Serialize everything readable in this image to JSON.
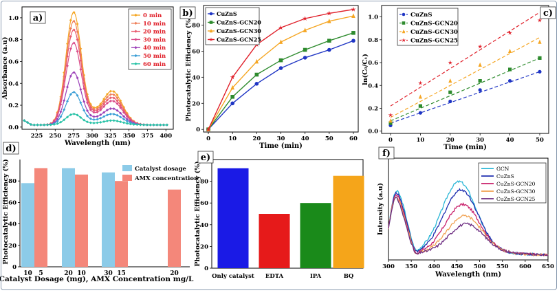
{
  "chart_data": [
    {
      "panel": "a)",
      "type": "line",
      "xlabel": "Wavelength (nm)",
      "ylabel": "Absorbance (a.u)",
      "xlim": [
        205,
        410
      ],
      "ylim": [
        -0.02,
        1.1
      ],
      "xticks": [
        225,
        250,
        275,
        300,
        325,
        350,
        375,
        400
      ],
      "yticks": [
        0.0,
        0.2,
        0.4,
        0.6,
        0.8,
        1.0
      ],
      "yticklabels": [
        "0.0",
        "0.2",
        "0.4",
        "0.6",
        "0.8",
        "1.0"
      ],
      "peak1": 275,
      "peak2": 327,
      "series": [
        {
          "name": "0 min",
          "color": "#f5a623",
          "peak1": 1.03,
          "peak2": 0.31
        },
        {
          "name": "10 min",
          "color": "#ef7d57",
          "peak1": 0.95,
          "peak2": 0.28
        },
        {
          "name": "20 min",
          "color": "#e85a6e",
          "peak1": 0.87,
          "peak2": 0.25
        },
        {
          "name": "30 min",
          "color": "#d94b8a",
          "peak1": 0.75,
          "peak2": 0.22
        },
        {
          "name": "40 min",
          "color": "#9b3fb8",
          "peak1": 0.48,
          "peak2": 0.15
        },
        {
          "name": "50 min",
          "color": "#3b9ed6",
          "peak1": 0.3,
          "peak2": 0.1
        },
        {
          "name": "60 min",
          "color": "#26c2a6",
          "peak1": 0.1,
          "peak2": 0.04
        }
      ]
    },
    {
      "panel": "b)",
      "type": "line",
      "xlabel": "Time (min)",
      "ylabel": "Photocatalytic Efficiency (%)",
      "xlim": [
        -2,
        62
      ],
      "ylim": [
        -2,
        95
      ],
      "xticks": [
        0,
        10,
        20,
        30,
        40,
        50,
        60
      ],
      "yticks": [
        0,
        20,
        40,
        60,
        80
      ],
      "x": [
        0,
        10,
        20,
        30,
        40,
        50,
        60
      ],
      "series": [
        {
          "name": "CuZnS",
          "color": "#1f35c4",
          "marker": "circle",
          "values": [
            0,
            20,
            35,
            47,
            55,
            61,
            68
          ]
        },
        {
          "name": "CuZnS-GCN20",
          "color": "#2e8b2e",
          "marker": "square",
          "values": [
            0,
            25,
            42,
            53,
            61,
            68,
            74
          ]
        },
        {
          "name": "CuZnS-GCN30",
          "color": "#f5a623",
          "marker": "triangle",
          "values": [
            0,
            32,
            52,
            67,
            76,
            83,
            87
          ]
        },
        {
          "name": "CuZnS-GCN25",
          "color": "#e0202a",
          "marker": "star",
          "values": [
            0,
            40,
            65,
            78,
            85,
            89,
            92
          ]
        }
      ]
    },
    {
      "panel": "c)",
      "type": "scatter",
      "xlabel": "Time (min)",
      "ylabel": "ln(C₀/Cₜ)",
      "xlim": [
        -3,
        53
      ],
      "ylim": [
        -0.02,
        1.1
      ],
      "xticks": [
        0,
        10,
        20,
        30,
        40,
        50
      ],
      "yticks": [
        0.0,
        0.2,
        0.4,
        0.6,
        0.8,
        1.0
      ],
      "yticklabels": [
        "0.0",
        "0.2",
        "0.4",
        "0.6",
        "0.8",
        "1.0"
      ],
      "x": [
        0,
        10,
        20,
        30,
        40,
        50
      ],
      "series": [
        {
          "name": "CuZnS",
          "color": "#1f35c4",
          "marker": "circle",
          "values": [
            0.05,
            0.16,
            0.26,
            0.36,
            0.44,
            0.52
          ],
          "fit": [
            0.07,
            0.52
          ]
        },
        {
          "name": "CuZnS-GCN20",
          "color": "#2e8b2e",
          "marker": "square",
          "values": [
            0.07,
            0.22,
            0.34,
            0.44,
            0.54,
            0.64
          ],
          "fit": [
            0.09,
            0.64
          ]
        },
        {
          "name": "CuZnS-GCN30",
          "color": "#f5a623",
          "marker": "triangle",
          "values": [
            0.09,
            0.3,
            0.44,
            0.58,
            0.7,
            0.78
          ],
          "fit": [
            0.12,
            0.82
          ]
        },
        {
          "name": "CuZnS-GCN25",
          "color": "#e0202a",
          "marker": "star",
          "values": [
            0.14,
            0.42,
            0.6,
            0.74,
            0.86,
            0.97
          ],
          "fit": [
            0.22,
            1.04
          ]
        }
      ]
    },
    {
      "panel": "d)",
      "type": "bar",
      "xlabel": "Catalyst Dosage (mg), AMX Concentration mg/L",
      "ylabel": "Photocatalytic Efficiency (%)",
      "ylim": [
        0,
        100
      ],
      "yticks": [
        0,
        20,
        40,
        60,
        80
      ],
      "groups": [
        {
          "dosage": "10",
          "concentration": "5",
          "catalyst": 78,
          "amx": 92
        },
        {
          "dosage": "20",
          "concentration": "10",
          "catalyst": 92,
          "amx": 86
        },
        {
          "dosage": "30",
          "concentration": "15",
          "catalyst": 88,
          "amx": 80
        },
        {
          "dosage": "",
          "concentration": "20",
          "catalyst": null,
          "amx": 72
        }
      ],
      "series": [
        {
          "name": "Catalyst dosage",
          "color": "#8ccbe8"
        },
        {
          "name": "AMX concentration",
          "color": "#f4877a"
        }
      ]
    },
    {
      "panel": "e)",
      "type": "bar",
      "xlabel": "",
      "ylabel": "Photocatalytic Efficiency (%)",
      "ylim": [
        0,
        100
      ],
      "yticks": [
        0,
        20,
        40,
        60,
        80
      ],
      "categories": [
        "Only catalyst",
        "EDTA",
        "IPA",
        "BQ"
      ],
      "values": [
        92,
        50,
        60,
        85
      ],
      "colors": [
        "#1a1ae6",
        "#e61a1a",
        "#1a8a1a",
        "#f5a51a"
      ]
    },
    {
      "panel": "f)",
      "type": "line",
      "xlabel": "Wavelength (nm)",
      "ylabel": "Intensity (a.u)",
      "xlim": [
        300,
        650
      ],
      "xticks": [
        300,
        350,
        400,
        450,
        500,
        550,
        600,
        650
      ],
      "series": [
        {
          "name": "GCN",
          "color": "#29b6d6",
          "peak": 0.88
        },
        {
          "name": "CuZnS",
          "color": "#1f2fb0",
          "peak": 0.78
        },
        {
          "name": "CuZnS-GCN20",
          "color": "#c81e6a",
          "peak": 0.6
        },
        {
          "name": "CuZnS-GCN30",
          "color": "#f0a050",
          "peak": 0.46
        },
        {
          "name": "CuZnS-GCN25",
          "color": "#6b2a80",
          "peak": 0.36
        }
      ]
    }
  ]
}
